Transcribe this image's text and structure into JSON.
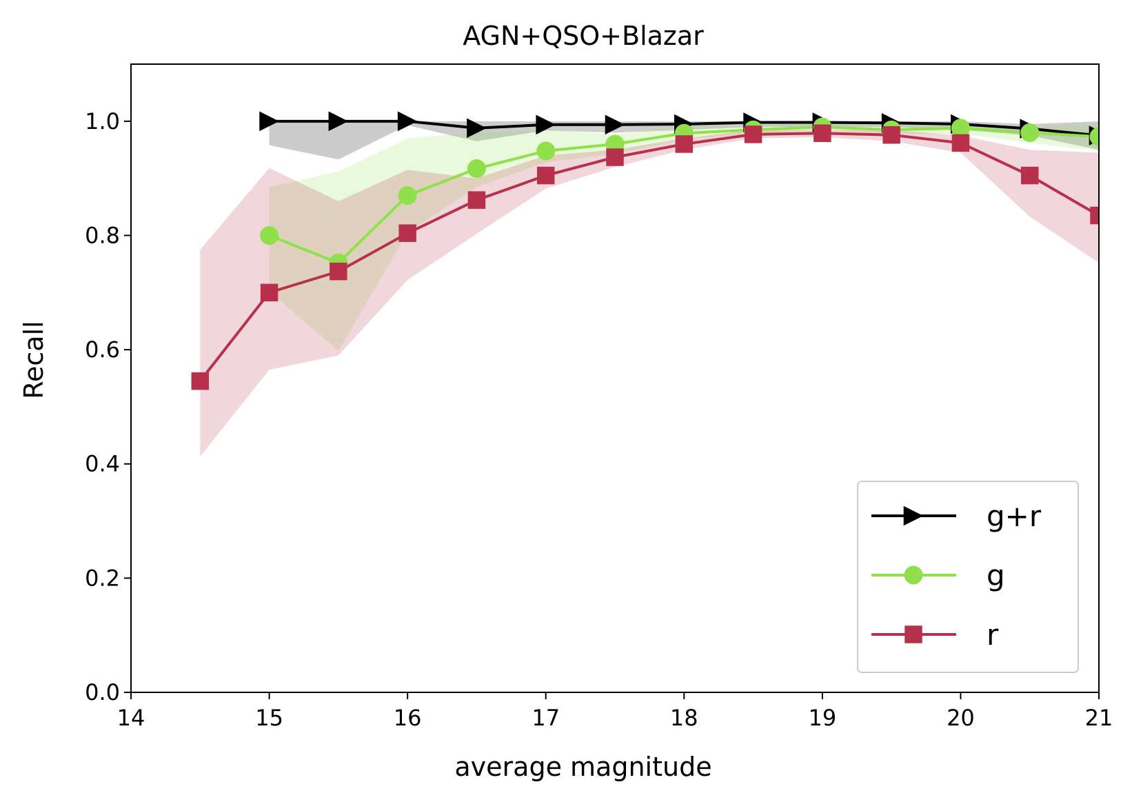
{
  "chart_data": {
    "type": "line",
    "title": "AGN+QSO+Blazar",
    "xlabel": "average magnitude",
    "ylabel": "Recall",
    "xlim": [
      14,
      21
    ],
    "ylim": [
      0,
      1.1
    ],
    "xticks": [
      14,
      15,
      16,
      17,
      18,
      19,
      20,
      21
    ],
    "xtick_labels": [
      "14",
      "15",
      "16",
      "17",
      "18",
      "19",
      "20",
      "21"
    ],
    "yticks": [
      0.0,
      0.2,
      0.4,
      0.6,
      0.8,
      1.0
    ],
    "ytick_labels": [
      "0.0",
      "0.2",
      "0.4",
      "0.6",
      "0.8",
      "1.0"
    ],
    "grid": false,
    "legend_position": "lower-right",
    "series": [
      {
        "name": "g+r",
        "color": "#000000",
        "marker": "triangle-right",
        "x": [
          15,
          15.5,
          16,
          16.5,
          17,
          17.5,
          18,
          18.5,
          19,
          19.5,
          20,
          20.5,
          21
        ],
        "y": [
          1.0,
          1.0,
          1.0,
          0.988,
          0.994,
          0.994,
          0.995,
          0.998,
          0.998,
          0.997,
          0.995,
          0.987,
          0.975
        ],
        "band_color": "#999999",
        "band_opacity": 0.5,
        "lower": [
          0.958,
          0.933,
          0.993,
          0.965,
          0.984,
          0.98,
          0.985,
          0.99,
          0.99,
          0.99,
          0.985,
          0.975,
          0.95
        ],
        "upper": [
          1.0,
          1.0,
          1.0,
          1.0,
          1.0,
          1.0,
          1.0,
          1.0,
          1.0,
          1.0,
          1.0,
          0.995,
          1.0
        ]
      },
      {
        "name": "g",
        "color": "#8fe04a",
        "marker": "circle",
        "x": [
          15,
          15.5,
          16,
          16.5,
          17,
          17.5,
          18,
          18.5,
          19,
          19.5,
          20,
          20.5,
          21
        ],
        "y": [
          0.8,
          0.752,
          0.87,
          0.917,
          0.948,
          0.96,
          0.979,
          0.985,
          0.99,
          0.985,
          0.988,
          0.98,
          0.973
        ],
        "band_color": "#8fe04a",
        "band_opacity": 0.2,
        "lower": [
          0.702,
          0.598,
          0.805,
          0.885,
          0.928,
          0.943,
          0.968,
          0.978,
          0.985,
          0.978,
          0.978,
          0.962,
          0.948
        ],
        "upper": [
          0.885,
          0.912,
          0.97,
          0.98,
          0.985,
          0.977,
          0.99,
          0.993,
          0.995,
          0.992,
          0.995,
          0.99,
          0.995
        ]
      },
      {
        "name": "r",
        "color": "#b8314c",
        "marker": "square",
        "x": [
          14.5,
          15,
          15.5,
          16,
          16.5,
          17,
          17.5,
          18,
          18.5,
          19,
          19.5,
          20,
          20.5,
          21
        ],
        "y": [
          0.545,
          0.7,
          0.737,
          0.804,
          0.862,
          0.905,
          0.937,
          0.96,
          0.977,
          0.979,
          0.976,
          0.962,
          0.905,
          0.835
        ],
        "band_color": "#b8314c",
        "band_opacity": 0.2,
        "lower": [
          0.413,
          0.565,
          0.59,
          0.722,
          0.803,
          0.882,
          0.92,
          0.95,
          0.97,
          0.972,
          0.965,
          0.945,
          0.833,
          0.752
        ],
        "upper": [
          0.775,
          0.918,
          0.86,
          0.915,
          0.9,
          0.94,
          0.95,
          0.97,
          0.985,
          0.985,
          0.985,
          0.975,
          0.95,
          0.945
        ]
      }
    ]
  }
}
